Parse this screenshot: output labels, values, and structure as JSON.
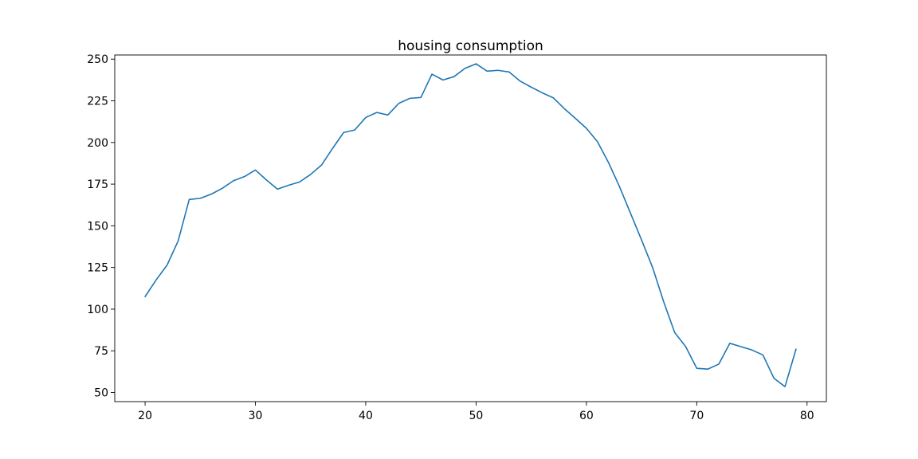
{
  "chart_data": {
    "type": "line",
    "title": "housing consumption",
    "xlabel": "",
    "ylabel": "",
    "xlim": [
      17.25,
      81.75
    ],
    "ylim": [
      44.5,
      252.5
    ],
    "xticks": [
      20,
      30,
      40,
      50,
      60,
      70,
      80
    ],
    "yticks": [
      50,
      75,
      100,
      125,
      150,
      175,
      200,
      225,
      250
    ],
    "grid": false,
    "series": [
      {
        "color": "#1f77b4",
        "x": [
          20,
          21,
          22,
          23,
          24,
          25,
          26,
          27,
          28,
          29,
          30,
          31,
          32,
          33,
          34,
          35,
          36,
          37,
          38,
          39,
          40,
          41,
          42,
          43,
          44,
          45,
          46,
          47,
          48,
          49,
          50,
          51,
          52,
          53,
          54,
          55,
          56,
          57,
          58,
          59,
          60,
          61,
          62,
          63,
          64,
          65,
          66,
          67,
          68,
          69,
          70,
          71,
          72,
          73,
          74,
          75,
          76,
          77,
          78,
          79
        ],
        "y": [
          107.5,
          117.5,
          126.5,
          141,
          165.8,
          166.5,
          169,
          172.5,
          177,
          179.5,
          183.5,
          177.5,
          172,
          174.3,
          176.3,
          180.8,
          186.5,
          196.5,
          206,
          207.5,
          215,
          218,
          216.5,
          223.5,
          226.5,
          227,
          241,
          237.5,
          239.5,
          244.5,
          247.2,
          242.8,
          243.3,
          242.3,
          236.8,
          233.2,
          229.8,
          226.8,
          220.3,
          214.5,
          208.5,
          200.5,
          188,
          173.5,
          157.5,
          141.5,
          125,
          104.5,
          86,
          77.5,
          64.5,
          64,
          67,
          79.5,
          77.5,
          75.5,
          72.5,
          58.5,
          53.5,
          76
        ]
      }
    ]
  }
}
